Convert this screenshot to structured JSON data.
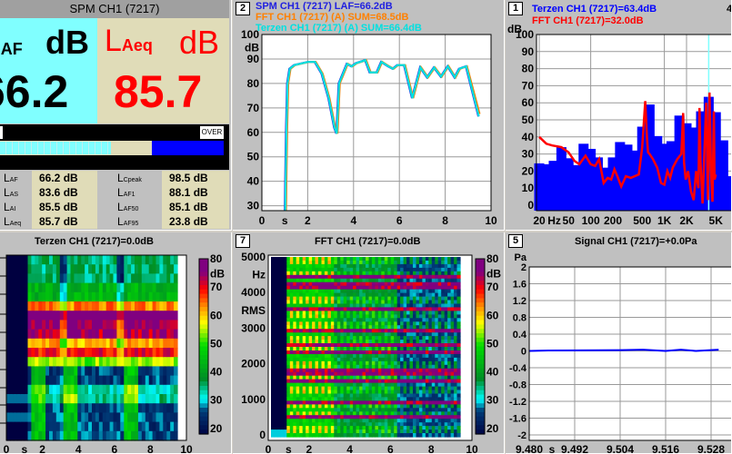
{
  "spm": {
    "title": "SPM CH1 (7217)",
    "left": {
      "label_main": "L",
      "label_sub": "AF",
      "unit": "dB",
      "value": "66.2",
      "bg": "#80ffff",
      "color": "#000000"
    },
    "right": {
      "label_main": "L",
      "label_sub": "Aeq",
      "unit": "dB",
      "value": "85.7",
      "bg": "#e0dcb8",
      "color": "#ff0000"
    },
    "over_label": "OVER",
    "level_fraction": 0.5,
    "table": [
      {
        "label": "L",
        "sub": "AF",
        "value": "66.2 dB"
      },
      {
        "label": "L",
        "sub": "AS",
        "value": "83.6 dB"
      },
      {
        "label": "L",
        "sub": "AI",
        "value": "85.5 dB"
      },
      {
        "label": "L",
        "sub": "Aeq",
        "value": "85.7 dB"
      },
      {
        "label": "L",
        "sub": "Cpeak",
        "value": "98.5 dB"
      },
      {
        "label": "L",
        "sub": "AF1",
        "value": "88.1 dB"
      },
      {
        "label": "L",
        "sub": "AF50",
        "value": "85.1 dB"
      },
      {
        "label": "L",
        "sub": "AF95",
        "value": "23.8 dB"
      }
    ]
  },
  "level_panel": {
    "number": "2",
    "legend": [
      {
        "text": "SPM CH1 (7217) LAF=66.2dB",
        "color": "#2020e0"
      },
      {
        "text": "FFT CH1 (7217) (A) SUM=68.5dB",
        "color": "#ff8000"
      },
      {
        "text": "Terzen CH1 (7217) (A) SUM=66.4dB",
        "color": "#00e0e0"
      }
    ]
  },
  "spectrum_panel": {
    "number": "1",
    "legend": [
      {
        "text": "Terzen CH1 (7217)=63.4dB",
        "color": "#0000ff"
      },
      {
        "text": "FFT CH1 (7217)=32.0dB",
        "color": "#ff0000"
      }
    ],
    "corner_number": "4"
  },
  "terzen_spectrogram": {
    "title": "Terzen CH1 (7217)=0.0dB"
  },
  "fft_spectrogram": {
    "number": "7",
    "title": "FFT CH1 (7217)=0.0dB"
  },
  "signal_panel": {
    "number": "5",
    "title": "Signal CH1 (7217)=+0.0Pa"
  },
  "chart_data": [
    {
      "type": "line",
      "xlim": [
        0,
        10
      ],
      "ylim": [
        28,
        100
      ],
      "xticks": [
        "0",
        "s",
        "2",
        "4",
        "6",
        "8",
        "10"
      ],
      "yticks": [
        "100",
        "dB",
        "90",
        "80",
        "70",
        "60",
        "50",
        "40",
        "30"
      ],
      "grid": true,
      "series": [
        {
          "name": "SPM CH1 (7217) LAF",
          "color": "#2020e0",
          "x": [
            1.0,
            1.05,
            1.1,
            1.2,
            1.4,
            2.0,
            2.3,
            2.6,
            2.9,
            3.15,
            3.25,
            3.35,
            3.7,
            3.9,
            4.1,
            4.5,
            4.7,
            5.0,
            5.2,
            5.5,
            5.7,
            5.9,
            6.2,
            6.55,
            6.9,
            7.2,
            7.5,
            7.8,
            8.1,
            8.4,
            8.6,
            8.9,
            9.45
          ],
          "y": [
            28,
            60,
            80,
            86,
            87.5,
            88.8,
            88.8,
            84,
            74,
            62,
            59.5,
            80,
            88,
            87,
            88.3,
            89.5,
            84.5,
            84.5,
            88.8,
            87,
            86,
            87.5,
            87.5,
            74,
            86.5,
            82.5,
            86.5,
            82.8,
            87,
            82.5,
            86,
            87,
            66.5
          ]
        },
        {
          "name": "FFT CH1 (7217) (A) SUM",
          "color": "#ff8000",
          "x": [
            1.05,
            1.1,
            1.15,
            1.25,
            1.45,
            2.05,
            2.35,
            2.65,
            2.95,
            3.2,
            3.3,
            3.4,
            3.75,
            3.95,
            4.15,
            4.55,
            4.75,
            5.05,
            5.25,
            5.55,
            5.75,
            5.95,
            6.25,
            6.6,
            6.95,
            7.25,
            7.55,
            7.85,
            8.15,
            8.45,
            8.65,
            8.95,
            9.5
          ],
          "y": [
            28,
            60,
            80,
            86,
            87.5,
            88.8,
            88.8,
            84,
            74,
            62,
            59.5,
            80,
            88,
            87,
            88.3,
            89.5,
            84.5,
            84.5,
            88.8,
            87,
            86,
            87.5,
            87.5,
            74,
            86.5,
            82.5,
            86.5,
            82.8,
            87,
            82.5,
            86,
            87,
            67.5
          ]
        },
        {
          "name": "Terzen CH1 (7217) (A) SUM",
          "color": "#00e0e0",
          "x": [
            1.02,
            1.07,
            1.12,
            1.22,
            1.42,
            2.02,
            2.32,
            2.62,
            2.92,
            3.17,
            3.27,
            3.37,
            3.72,
            3.92,
            4.12,
            4.52,
            4.72,
            5.02,
            5.22,
            5.52,
            5.72,
            5.92,
            6.22,
            6.57,
            6.92,
            7.22,
            7.52,
            7.82,
            8.12,
            8.42,
            8.62,
            8.92,
            9.47
          ],
          "y": [
            28,
            60,
            80,
            86,
            87.5,
            88.8,
            88.8,
            84,
            74,
            62,
            59.5,
            80,
            88,
            87,
            88.3,
            89.5,
            84.5,
            84.5,
            88.8,
            87,
            86,
            87.5,
            87.5,
            74,
            86.5,
            82.5,
            86.5,
            82.8,
            87,
            82.5,
            86,
            87,
            66.5
          ]
        }
      ]
    },
    {
      "type": "bar",
      "xscale": "log",
      "xlim": [
        18,
        11000
      ],
      "ylim": [
        -3,
        100
      ],
      "xticks": [
        "20",
        "Hz",
        "50",
        "100",
        "200",
        "500",
        "1K",
        "2K",
        "5K",
        "10"
      ],
      "yticks": [
        "100",
        "dB",
        "90",
        "80",
        "70",
        "60",
        "50",
        "40",
        "30",
        "20",
        "10",
        "0"
      ],
      "grid": true,
      "categories": [
        20,
        25,
        31.5,
        40,
        50,
        63,
        80,
        100,
        125,
        160,
        200,
        250,
        315,
        400,
        500,
        630,
        800,
        1000,
        1250,
        1600,
        2000,
        2500,
        3150,
        4000,
        5000,
        6300,
        8000,
        10000
      ],
      "series": [
        {
          "name": "Terzen CH1 (7217)",
          "color": "#0000ff",
          "type": "bar",
          "values": [
            24.5,
            24,
            26,
            34,
            27.5,
            23.5,
            36,
            33,
            28,
            22,
            28,
            37,
            35.5,
            32,
            46,
            59,
            40.5,
            36,
            37.5,
            52.5,
            48,
            45.5,
            55,
            63.5,
            54.5,
            38,
            17,
            14
          ]
        },
        {
          "name": "FFT CH1 (7217)",
          "color": "#ff0000",
          "type": "line",
          "x": [
            20,
            25,
            30,
            40,
            50,
            60,
            70,
            85,
            100,
            115,
            130,
            150,
            170,
            190,
            210,
            230,
            260,
            300,
            350,
            450,
            500,
            550,
            580,
            600,
            630,
            700,
            800,
            900,
            1000,
            1100,
            1200,
            1300,
            1500,
            1700,
            1800,
            1850,
            1950,
            2100,
            2300,
            2500,
            2700,
            2900,
            3000,
            3100,
            3300,
            3500,
            3700,
            3900,
            4100,
            4300,
            4500,
            4700,
            4800,
            5000
          ],
          "y": [
            40,
            36,
            35,
            34,
            31,
            26,
            24,
            29,
            24,
            23,
            27,
            13,
            16,
            15,
            21,
            17,
            11,
            17,
            16,
            18,
            34,
            61,
            40,
            31,
            30,
            27,
            22,
            13,
            12,
            20,
            16,
            22,
            27,
            30,
            54,
            25,
            15,
            20,
            8,
            3,
            20,
            10,
            57,
            25,
            1,
            32,
            60,
            3,
            66,
            20,
            2,
            55,
            15,
            18
          ]
        }
      ],
      "cursor_freq": 4000
    },
    {
      "type": "heatmap",
      "title": "Terzen CH1 (7217)=0.0dB",
      "xlim": [
        0,
        10
      ],
      "xticks": [
        "0",
        "s",
        "2",
        "4",
        "6",
        "8",
        "10"
      ],
      "colorbar": {
        "ticks": [
          "80",
          "dB",
          "70",
          "60",
          "50",
          "40",
          "30",
          "20"
        ],
        "range": [
          18,
          80
        ]
      }
    },
    {
      "type": "heatmap",
      "title": "FFT CH1 (7217)=0.0dB",
      "xlim": [
        0,
        10
      ],
      "xticks": [
        "0",
        "s",
        "2",
        "4",
        "6",
        "8",
        "10"
      ],
      "ylim": [
        0,
        5000
      ],
      "yticks": [
        "5000",
        "Hz",
        "4000",
        "RMS",
        "3000",
        "2000",
        "1000",
        "0"
      ],
      "colorbar": {
        "ticks": [
          "80",
          "dB",
          "70",
          "60",
          "50",
          "40",
          "30",
          "20"
        ],
        "range": [
          18,
          80
        ]
      }
    },
    {
      "type": "line",
      "title": "Signal CH1 (7217)=+0.0Pa",
      "xlim": [
        9.48,
        9.535
      ],
      "ylim": [
        -2.2,
        2
      ],
      "xticks": [
        "9.480",
        "s",
        "9.492",
        "9.504",
        "9.516",
        "9.528"
      ],
      "yticks": [
        "2",
        "Pa",
        "1.6",
        "1.2",
        "0.8",
        "0.4",
        "0",
        "-0.4",
        "-0.8",
        "-1.2",
        "-1.6",
        "-2"
      ],
      "grid": true,
      "series": [
        {
          "color": "#0000ff",
          "x": [
            9.48,
            9.485,
            9.504,
            9.51,
            9.516,
            9.52,
            9.524,
            9.53
          ],
          "y": [
            0,
            0.01,
            0.02,
            0.03,
            0,
            0.03,
            0,
            0.03
          ]
        }
      ]
    }
  ]
}
